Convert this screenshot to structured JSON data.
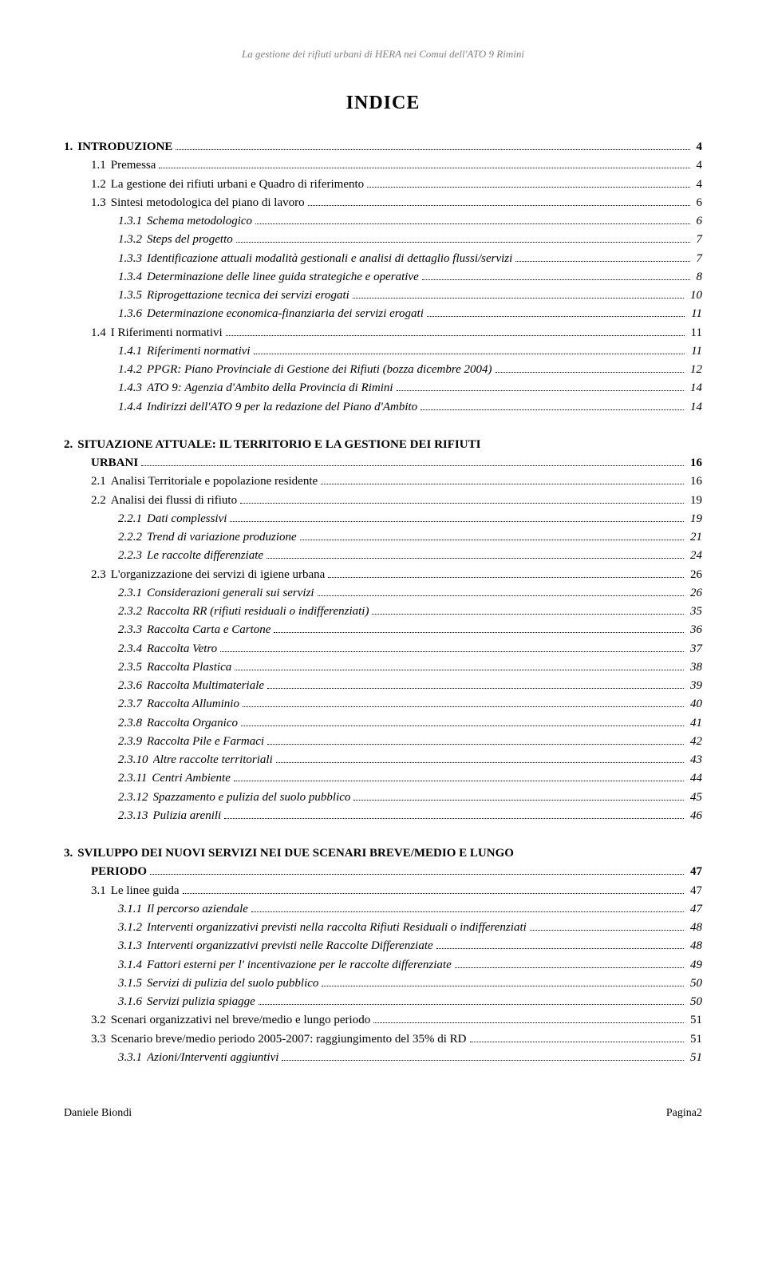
{
  "running_header": "La gestione dei rifiuti urbani di HERA nei Comui dell'ATO 9 Rimini",
  "title": "INDICE",
  "footer_left": "Daniele Biondi",
  "footer_right": "Pagina2",
  "toc": [
    {
      "level": 0,
      "num": "1.",
      "text": "INTRODUZIONE",
      "page": "4"
    },
    {
      "level": 1,
      "num": "1.1",
      "text": "Premessa",
      "page": "4"
    },
    {
      "level": 1,
      "num": "1.2",
      "text": "La gestione dei rifiuti urbani e Quadro di riferimento",
      "page": "4"
    },
    {
      "level": 1,
      "num": "1.3",
      "text": "Sintesi metodologica del piano di lavoro",
      "page": "6"
    },
    {
      "level": 2,
      "num": "1.3.1",
      "text": "Schema metodologico",
      "page": "6"
    },
    {
      "level": 2,
      "num": "1.3.2",
      "text": "Steps del progetto",
      "page": "7"
    },
    {
      "level": 2,
      "num": "1.3.3",
      "text": "Identificazione attuali modalità gestionali e analisi di dettaglio flussi/servizi",
      "page": "7"
    },
    {
      "level": 2,
      "num": "1.3.4",
      "text": "Determinazione delle linee guida strategiche e operative",
      "page": "8"
    },
    {
      "level": 2,
      "num": "1.3.5",
      "text": "Riprogettazione tecnica dei servizi erogati",
      "page": "10"
    },
    {
      "level": 2,
      "num": "1.3.6",
      "text": "Determinazione economica-finanziaria dei servizi erogati",
      "page": "11"
    },
    {
      "level": 1,
      "num": "1.4",
      "text": "I Riferimenti normativi",
      "page": "11"
    },
    {
      "level": 2,
      "num": "1.4.1",
      "text": "Riferimenti normativi",
      "page": "11"
    },
    {
      "level": 2,
      "num": "1.4.2",
      "text": "PPGR: Piano Provinciale di Gestione dei Rifiuti (bozza dicembre 2004)",
      "page": "12"
    },
    {
      "level": 2,
      "num": "1.4.3",
      "text": "ATO 9: Agenzia d'Ambito della Provincia di Rimini",
      "page": "14"
    },
    {
      "level": 2,
      "num": "1.4.4",
      "text": "Indirizzi dell'ATO 9 per la redazione del Piano d'Ambito",
      "page": "14"
    },
    {
      "level": 0,
      "num": "2.",
      "text": "SITUAZIONE ATTUALE: IL TERRITORIO E LA GESTIONE DEI RIFIUTI URBANI",
      "page": "16",
      "wrap": true
    },
    {
      "level": 1,
      "num": "2.1",
      "text": "Analisi Territoriale e popolazione residente",
      "page": "16"
    },
    {
      "level": 1,
      "num": "2.2",
      "text": "Analisi dei flussi di rifiuto",
      "page": "19"
    },
    {
      "level": 2,
      "num": "2.2.1",
      "text": "Dati complessivi",
      "page": "19"
    },
    {
      "level": 2,
      "num": "2.2.2",
      "text": "Trend di variazione produzione",
      "page": "21"
    },
    {
      "level": 2,
      "num": "2.2.3",
      "text": "Le raccolte differenziate",
      "page": "24"
    },
    {
      "level": 1,
      "num": "2.3",
      "text": "L'organizzazione dei servizi di igiene urbana",
      "page": "26"
    },
    {
      "level": 2,
      "num": "2.3.1",
      "text": "Considerazioni generali sui servizi",
      "page": "26"
    },
    {
      "level": 2,
      "num": "2.3.2",
      "text": "Raccolta RR (rifiuti residuali o indifferenziati)",
      "page": "35"
    },
    {
      "level": 2,
      "num": "2.3.3",
      "text": "Raccolta Carta e Cartone",
      "page": "36"
    },
    {
      "level": 2,
      "num": "2.3.4",
      "text": "Raccolta Vetro",
      "page": "37"
    },
    {
      "level": 2,
      "num": "2.3.5",
      "text": "Raccolta Plastica",
      "page": "38"
    },
    {
      "level": 2,
      "num": "2.3.6",
      "text": "Raccolta Multimateriale",
      "page": "39"
    },
    {
      "level": 2,
      "num": "2.3.7",
      "text": "Raccolta Alluminio",
      "page": "40"
    },
    {
      "level": 2,
      "num": "2.3.8",
      "text": "Raccolta Organico",
      "page": "41"
    },
    {
      "level": 2,
      "num": "2.3.9",
      "text": "Raccolta Pile e Farmaci",
      "page": "42"
    },
    {
      "level": 2,
      "num": "2.3.10",
      "text": "Altre raccolte territoriali",
      "page": "43"
    },
    {
      "level": 2,
      "num": "2.3.11",
      "text": "Centri Ambiente",
      "page": "44"
    },
    {
      "level": 2,
      "num": "2.3.12",
      "text": "Spazzamento e pulizia del suolo pubblico",
      "page": "45"
    },
    {
      "level": 2,
      "num": "2.3.13",
      "text": "Pulizia arenili",
      "page": "46"
    },
    {
      "level": 0,
      "num": "3.",
      "text": "SVILUPPO DEI NUOVI SERVIZI NEI DUE SCENARI BREVE/MEDIO E LUNGO PERIODO",
      "page": "47",
      "wrap": true
    },
    {
      "level": 1,
      "num": "3.1",
      "text": "Le linee guida",
      "page": "47"
    },
    {
      "level": 2,
      "num": "3.1.1",
      "text": "Il percorso aziendale",
      "page": "47"
    },
    {
      "level": 2,
      "num": "3.1.2",
      "text": "Interventi organizzativi previsti nella raccolta Rifiuti Residuali o indifferenziati",
      "page": "48"
    },
    {
      "level": 2,
      "num": "3.1.3",
      "text": "Interventi organizzativi previsti nelle Raccolte Differenziate",
      "page": "48"
    },
    {
      "level": 2,
      "num": "3.1.4",
      "text": "Fattori esterni per l' incentivazione per le raccolte differenziate",
      "page": "49"
    },
    {
      "level": 2,
      "num": "3.1.5",
      "text": "Servizi di pulizia del suolo pubblico",
      "page": "50"
    },
    {
      "level": 2,
      "num": "3.1.6",
      "text": "Servizi pulizia spiagge",
      "page": "50"
    },
    {
      "level": 1,
      "num": "3.2",
      "text": "Scenari organizzativi nel breve/medio e lungo periodo",
      "page": "51"
    },
    {
      "level": 1,
      "num": "3.3",
      "text": "Scenario breve/medio periodo 2005-2007: raggiungimento del 35% di RD",
      "page": "51"
    },
    {
      "level": 2,
      "num": "3.3.1",
      "text": "Azioni/Interventi aggiuntivi",
      "page": "51"
    }
  ]
}
